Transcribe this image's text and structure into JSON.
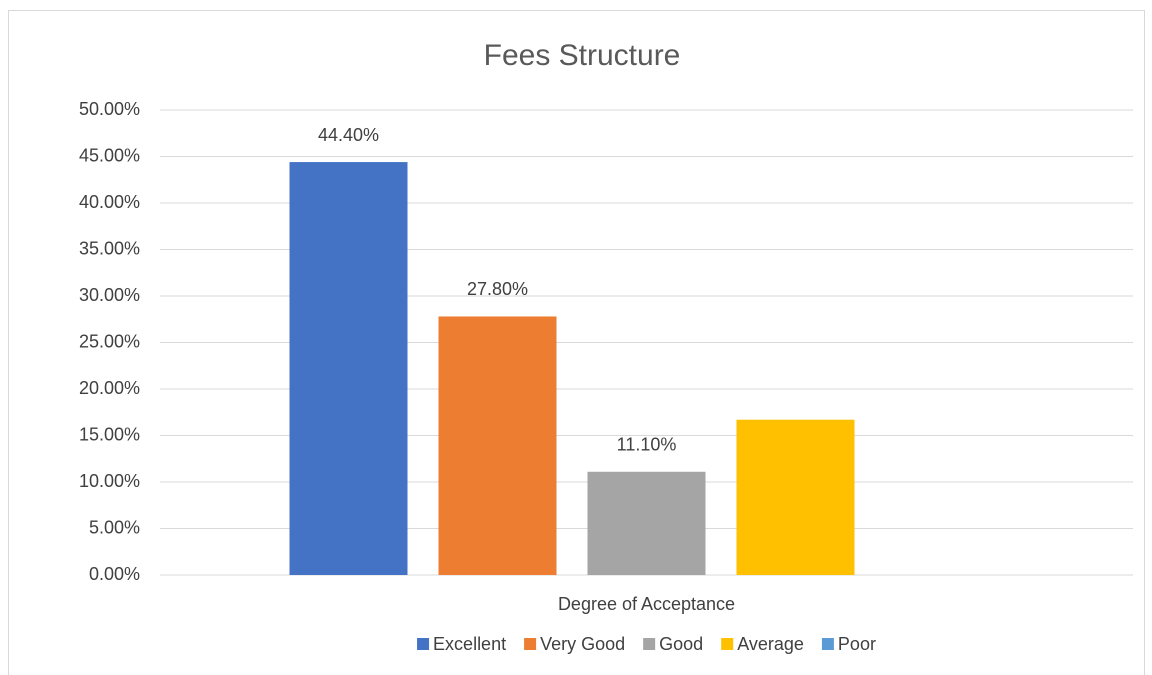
{
  "chart_data": {
    "type": "bar",
    "title": "Fees Structure",
    "categories": [
      "Degree of Acceptance"
    ],
    "series": [
      {
        "name": "Excellent",
        "color": "#4472c4",
        "values": [
          44.4
        ],
        "value_labels": [
          "44.40%"
        ]
      },
      {
        "name": "Very Good",
        "color": "#ed7d31",
        "values": [
          27.8
        ],
        "value_labels": [
          "27.80%"
        ]
      },
      {
        "name": "Good",
        "color": "#a5a5a5",
        "values": [
          11.1
        ],
        "value_labels": [
          "11.10%"
        ]
      },
      {
        "name": "Average",
        "color": "#ffc000",
        "values": [
          16.7
        ]
      },
      {
        "name": "Poor",
        "color": "#5b9bd5",
        "values": [
          0
        ]
      }
    ],
    "ylim": [
      0,
      50
    ],
    "yticks": [
      {
        "value": 0,
        "label": "0.00%"
      },
      {
        "value": 5,
        "label": "5.00%"
      },
      {
        "value": 10,
        "label": "10.00%"
      },
      {
        "value": 15,
        "label": "15.00%"
      },
      {
        "value": 20,
        "label": "20.00%"
      },
      {
        "value": 25,
        "label": "25.00%"
      },
      {
        "value": 30,
        "label": "30.00%"
      },
      {
        "value": 35,
        "label": "35.00%"
      },
      {
        "value": 40,
        "label": "40.00%"
      },
      {
        "value": 45,
        "label": "45.00%"
      },
      {
        "value": 50,
        "label": "50.00%"
      }
    ],
    "grid": true,
    "legend": "bottom"
  }
}
